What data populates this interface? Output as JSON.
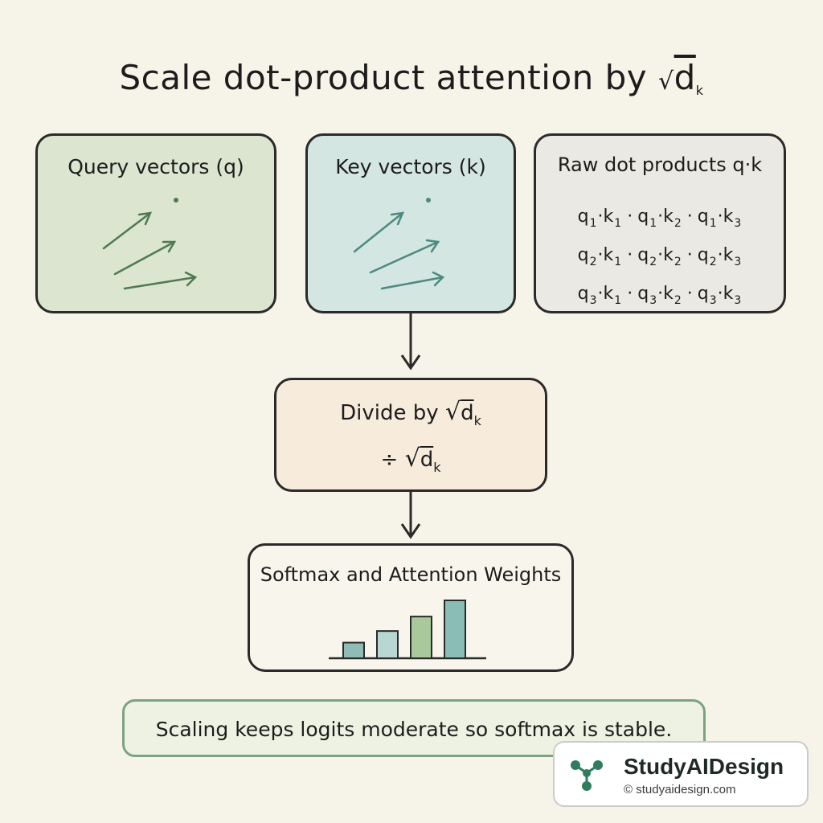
{
  "title": {
    "text": "Scale dot-product attention by",
    "radical": "√",
    "symbol": "d",
    "subscript": "k"
  },
  "query_box": {
    "label": "Query vectors (q)",
    "color": "#dce5cf"
  },
  "key_box": {
    "label": "Key vectors (k)",
    "color": "#d3e6e1"
  },
  "dots_box": {
    "label": "Raw dot products q·k",
    "rows": [
      [
        {
          "q": "q",
          "qs": "1",
          "k": "k",
          "ks": "1"
        },
        {
          "q": "q",
          "qs": "1",
          "k": "k",
          "ks": "2"
        },
        {
          "q": "q",
          "qs": "1",
          "k": "k",
          "ks": "3"
        }
      ],
      [
        {
          "q": "q",
          "qs": "2",
          "k": "k",
          "ks": "1"
        },
        {
          "q": "q",
          "qs": "2",
          "k": "k",
          "ks": "2"
        },
        {
          "q": "q",
          "qs": "2",
          "k": "k",
          "ks": "3"
        }
      ],
      [
        {
          "q": "q",
          "qs": "3",
          "k": "k",
          "ks": "1"
        },
        {
          "q": "q",
          "qs": "3",
          "k": "k",
          "ks": "2"
        },
        {
          "q": "q",
          "qs": "3",
          "k": "k",
          "ks": "3"
        }
      ]
    ],
    "dot": "·"
  },
  "divide_box": {
    "label": "Divide by",
    "radical": "√",
    "symbol": "d",
    "subscript": "k",
    "operator": "÷"
  },
  "softmax_box": {
    "label": "Softmax and Attention Weights",
    "bar_heights": [
      0.27,
      0.47,
      0.72,
      1.0
    ],
    "bar_colors": [
      "#8fbcb5",
      "#b9d7d2",
      "#a9c99a",
      "#8bbdb7"
    ]
  },
  "note": {
    "text": "Scaling keeps logits moderate so softmax is stable."
  },
  "brand": {
    "name": "StudyAIDesign",
    "url": "© studyaidesign.com",
    "color": "#2f7d5e"
  }
}
